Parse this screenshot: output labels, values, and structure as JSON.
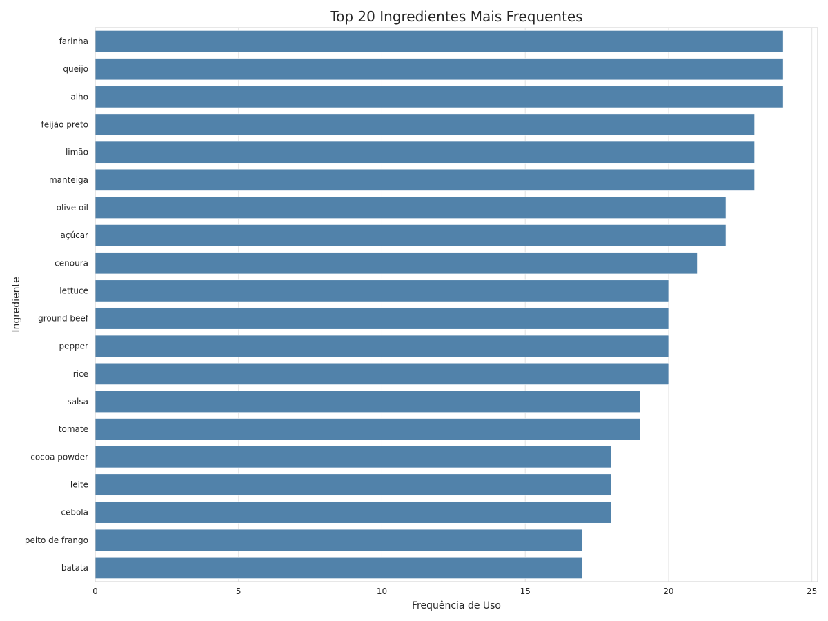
{
  "chart_data": {
    "type": "bar",
    "orientation": "horizontal",
    "title": "Top 20 Ingredientes Mais Frequentes",
    "xlabel": "Frequência de Uso",
    "ylabel": "Ingrediente",
    "categories": [
      "farinha",
      "queijo",
      "alho",
      "feijão preto",
      "limão",
      "manteiga",
      "olive oil",
      "açúcar",
      "cenoura",
      "lettuce",
      "ground beef",
      "pepper",
      "rice",
      "salsa",
      "tomate",
      "cocoa powder",
      "leite",
      "cebola",
      "peito de frango",
      "batata"
    ],
    "values": [
      24,
      24,
      24,
      23,
      23,
      23,
      22,
      22,
      21,
      20,
      20,
      20,
      20,
      19,
      19,
      18,
      18,
      18,
      17,
      17
    ],
    "xlim": [
      0,
      25.2
    ],
    "xticks": [
      0,
      5,
      10,
      15,
      20,
      25
    ],
    "xtick_labels": [
      "0",
      "5",
      "10",
      "15",
      "20",
      "25"
    ],
    "grid": true,
    "bar_color": "#5182aa",
    "grid_color": "#e2e2e2",
    "frame_color": "#cfcfcf"
  }
}
